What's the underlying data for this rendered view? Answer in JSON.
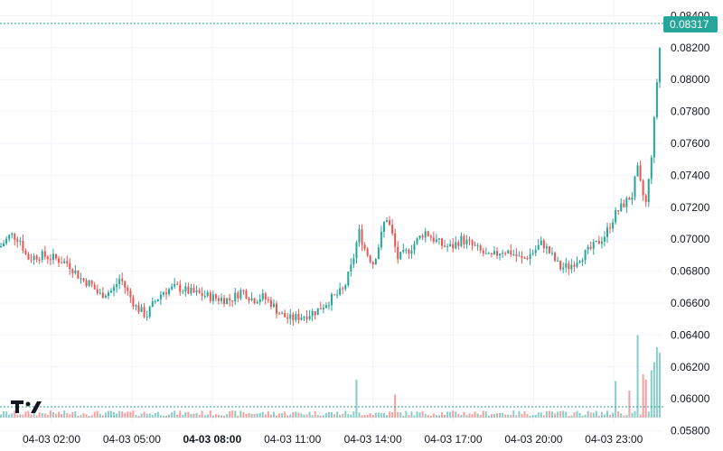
{
  "chart_data": {
    "type": "candlestick",
    "price_axis": {
      "ylim": [
        0.0579,
        0.0843
      ],
      "ticks": [
        "0.08400",
        "0.08200",
        "0.08000",
        "0.07800",
        "0.07600",
        "0.07400",
        "0.07200",
        "0.07000",
        "0.06800",
        "0.06600",
        "0.06400",
        "0.06200",
        "0.06000",
        "0.05800"
      ]
    },
    "time_axis": {
      "ticks": [
        {
          "label": "04-03 02:00",
          "bold": false
        },
        {
          "label": "04-03 05:00",
          "bold": false
        },
        {
          "label": "04-03 08:00",
          "bold": true
        },
        {
          "label": "04-03 11:00",
          "bold": false
        },
        {
          "label": "04-03 14:00",
          "bold": false
        },
        {
          "label": "04-03 17:00",
          "bold": false
        },
        {
          "label": "04-03 20:00",
          "bold": false
        },
        {
          "label": "04-03 23:00",
          "bold": false
        }
      ]
    },
    "last_price": "0.08317",
    "grid": true,
    "colors": {
      "up": "#26a69a",
      "down": "#ef5350",
      "grid": "#f0f3fa",
      "last_price": "#26a69a"
    },
    "logo": "tradingview-logo",
    "keypoints": [
      [
        0,
        0.0695
      ],
      [
        12,
        0.0703
      ],
      [
        22,
        0.07
      ],
      [
        30,
        0.0688
      ],
      [
        45,
        0.069
      ],
      [
        60,
        0.0688
      ],
      [
        75,
        0.0685
      ],
      [
        90,
        0.0675
      ],
      [
        100,
        0.0672
      ],
      [
        110,
        0.0665
      ],
      [
        125,
        0.0668
      ],
      [
        133,
        0.0676
      ],
      [
        140,
        0.0668
      ],
      [
        150,
        0.0658
      ],
      [
        162,
        0.0652
      ],
      [
        170,
        0.066
      ],
      [
        180,
        0.0667
      ],
      [
        195,
        0.067
      ],
      [
        210,
        0.0667
      ],
      [
        225,
        0.0665
      ],
      [
        240,
        0.0663
      ],
      [
        255,
        0.0662
      ],
      [
        268,
        0.0668
      ],
      [
        280,
        0.0662
      ],
      [
        290,
        0.0664
      ],
      [
        300,
        0.066
      ],
      [
        310,
        0.0653
      ],
      [
        320,
        0.065
      ],
      [
        335,
        0.0652
      ],
      [
        350,
        0.0655
      ],
      [
        365,
        0.0662
      ],
      [
        380,
        0.0668
      ],
      [
        390,
        0.0685
      ],
      [
        397,
        0.0705
      ],
      [
        405,
        0.0692
      ],
      [
        413,
        0.0685
      ],
      [
        420,
        0.0698
      ],
      [
        427,
        0.0715
      ],
      [
        433,
        0.0705
      ],
      [
        440,
        0.0688
      ],
      [
        450,
        0.0692
      ],
      [
        460,
        0.0698
      ],
      [
        470,
        0.0705
      ],
      [
        480,
        0.07
      ],
      [
        490,
        0.0696
      ],
      [
        500,
        0.0695
      ],
      [
        510,
        0.07
      ],
      [
        520,
        0.0697
      ],
      [
        530,
        0.0693
      ],
      [
        542,
        0.0688
      ],
      [
        555,
        0.0693
      ],
      [
        565,
        0.0692
      ],
      [
        578,
        0.0687
      ],
      [
        590,
        0.0692
      ],
      [
        600,
        0.0698
      ],
      [
        610,
        0.069
      ],
      [
        620,
        0.0682
      ],
      [
        630,
        0.0683
      ],
      [
        640,
        0.0688
      ],
      [
        650,
        0.0692
      ],
      [
        660,
        0.0697
      ],
      [
        670,
        0.0703
      ],
      [
        680,
        0.0715
      ],
      [
        690,
        0.0722
      ],
      [
        700,
        0.0728
      ],
      [
        705,
        0.0745
      ],
      [
        710,
        0.073
      ],
      [
        715,
        0.0722
      ],
      [
        720,
        0.0748
      ],
      [
        724,
        0.0775
      ],
      [
        728,
        0.0808
      ],
      [
        732,
        0.0832
      ]
    ],
    "volume_spikes": [
      [
        395,
        0.28
      ],
      [
        437,
        0.17
      ],
      [
        680,
        0.27
      ],
      [
        695,
        0.2
      ],
      [
        705,
        0.61
      ],
      [
        712,
        0.32
      ],
      [
        716,
        0.28
      ],
      [
        720,
        0.35
      ],
      [
        724,
        0.41
      ],
      [
        728,
        0.52
      ],
      [
        731,
        0.48
      ]
    ]
  }
}
